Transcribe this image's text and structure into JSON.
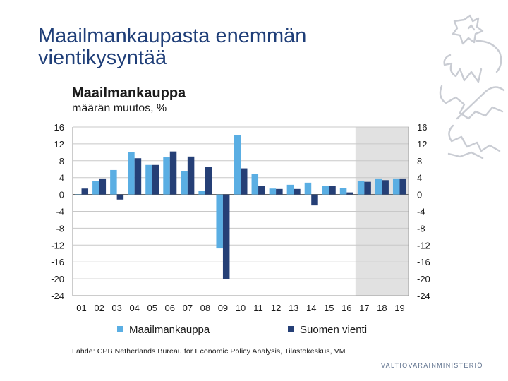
{
  "slide": {
    "title_line1": "Maailmankaupasta enemmän",
    "title_line2": "vientikysyntää",
    "source": "Lähde: CPB Netherlands  Bureau for Economic Policy Analysis, Tilastokeskus, VM",
    "footer_logo": "VALTIOVARAINMINISTERIÖ"
  },
  "colors": {
    "world_trade": "#5aaee3",
    "finland_exports": "#253f76",
    "forecast_shade": "#e1e1e1",
    "gridline": "#c8c8c8",
    "title": "#1f3e78"
  },
  "chart_data": {
    "type": "bar",
    "title": "Maailmankauppa",
    "subtitle": "määrän muutos, %",
    "categories": [
      "01",
      "02",
      "03",
      "04",
      "05",
      "06",
      "07",
      "08",
      "09",
      "10",
      "11",
      "12",
      "13",
      "14",
      "15",
      "16",
      "17",
      "18",
      "19"
    ],
    "series": [
      {
        "name": "Maailmankauppa",
        "color": "#5aaee3",
        "values": [
          -0.2,
          3.2,
          5.8,
          10.0,
          7.0,
          8.8,
          5.5,
          0.8,
          -12.8,
          14.0,
          4.8,
          1.4,
          2.3,
          2.8,
          2.0,
          1.5,
          3.2,
          3.8,
          3.8
        ]
      },
      {
        "name": "Suomen vienti",
        "color": "#253f76",
        "values": [
          1.4,
          3.8,
          -1.2,
          8.6,
          7.0,
          10.2,
          9.0,
          6.5,
          -20.0,
          6.2,
          2.0,
          1.3,
          1.3,
          -2.6,
          2.0,
          0.5,
          3.0,
          3.4,
          3.8
        ]
      }
    ],
    "ylim": [
      -24,
      16
    ],
    "yticks": [
      16,
      12,
      8,
      4,
      0,
      -4,
      -8,
      -12,
      -16,
      -20,
      -24
    ],
    "forecast_categories": [
      "17",
      "18",
      "19"
    ],
    "grid": true,
    "legend": "bottom",
    "dual_y_axis": true
  }
}
